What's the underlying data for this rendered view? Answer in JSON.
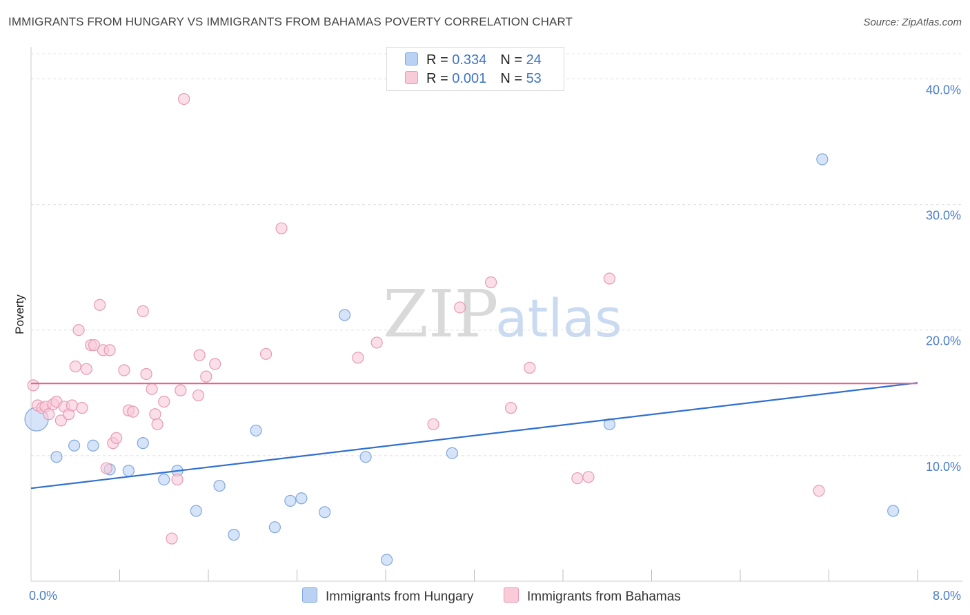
{
  "title": "IMMIGRANTS FROM HUNGARY VS IMMIGRANTS FROM BAHAMAS POVERTY CORRELATION CHART",
  "source": "Source: ZipAtlas.com",
  "watermark": {
    "zip": "ZIP",
    "atlas": "atlas"
  },
  "legend": {
    "rows": [
      {
        "r_label": "R = ",
        "r_value": "0.334",
        "n_label": "N = ",
        "n_value": "24",
        "color": "#b9d2f3",
        "border": "#7fa6dc"
      },
      {
        "r_label": "R = ",
        "r_value": "0.001",
        "n_label": "N = ",
        "n_value": "53",
        "color": "#f9cad8",
        "border": "#e79ab2"
      }
    ]
  },
  "bottom_legend": [
    {
      "label": "Immigrants from Hungary",
      "color": "#b9d2f3",
      "border": "#7fa6dc"
    },
    {
      "label": "Immigrants from Bahamas",
      "color": "#f9cad8",
      "border": "#e79ab2"
    }
  ],
  "chart_data": {
    "type": "scatter",
    "title": "IMMIGRANTS FROM HUNGARY VS IMMIGRANTS FROM BAHAMAS POVERTY CORRELATION CHART",
    "xlabel": "",
    "ylabel": "Poverty",
    "xlim": [
      0,
      8.0
    ],
    "ylim": [
      0,
      42.0
    ],
    "y_ticks": [
      10,
      20,
      30,
      40
    ],
    "y_tick_labels": [
      "10.0%",
      "20.0%",
      "30.0%",
      "40.0%"
    ],
    "x_tick_labels": [
      "0.0%",
      "8.0%"
    ],
    "x_tick_label_values": [
      0,
      8.0
    ],
    "x_minor_ticks": [
      0.8,
      1.6,
      2.4,
      3.2,
      4.0,
      4.8,
      5.6,
      6.4,
      7.2,
      8.0
    ],
    "series": [
      {
        "name": "Immigrants from Hungary",
        "color": "#b9d2f3",
        "stroke": "#7fa6dc",
        "line_color": "#2f6fd0",
        "trend": {
          "x": [
            0,
            8.0
          ],
          "y": [
            7.4,
            15.8
          ]
        },
        "points": [
          {
            "x": 0.05,
            "y": 12.9,
            "big": true
          },
          {
            "x": 0.23,
            "y": 9.9
          },
          {
            "x": 0.39,
            "y": 10.8
          },
          {
            "x": 0.56,
            "y": 10.8
          },
          {
            "x": 0.71,
            "y": 8.9
          },
          {
            "x": 0.88,
            "y": 8.8
          },
          {
            "x": 1.01,
            "y": 11.0
          },
          {
            "x": 1.2,
            "y": 8.1
          },
          {
            "x": 1.32,
            "y": 8.8
          },
          {
            "x": 1.49,
            "y": 5.6
          },
          {
            "x": 1.7,
            "y": 7.6
          },
          {
            "x": 1.83,
            "y": 3.7
          },
          {
            "x": 2.03,
            "y": 12.0
          },
          {
            "x": 2.2,
            "y": 4.3
          },
          {
            "x": 2.34,
            "y": 6.4
          },
          {
            "x": 2.44,
            "y": 6.6
          },
          {
            "x": 2.65,
            "y": 5.5
          },
          {
            "x": 2.83,
            "y": 21.2
          },
          {
            "x": 3.02,
            "y": 9.9
          },
          {
            "x": 3.21,
            "y": 1.7
          },
          {
            "x": 3.8,
            "y": 10.2
          },
          {
            "x": 5.22,
            "y": 12.5
          },
          {
            "x": 7.14,
            "y": 33.6
          },
          {
            "x": 7.78,
            "y": 5.6
          }
        ]
      },
      {
        "name": "Immigrants from Bahamas",
        "color": "#f9cad8",
        "stroke": "#e79ab2",
        "line_color": "#e2668f",
        "trend": {
          "x": [
            0,
            8.0
          ],
          "y": [
            15.75,
            15.75
          ]
        },
        "points": [
          {
            "x": 0.02,
            "y": 15.6
          },
          {
            "x": 0.06,
            "y": 14.0
          },
          {
            "x": 0.1,
            "y": 13.8
          },
          {
            "x": 0.13,
            "y": 13.9
          },
          {
            "x": 0.16,
            "y": 13.3
          },
          {
            "x": 0.2,
            "y": 14.1
          },
          {
            "x": 0.23,
            "y": 14.3
          },
          {
            "x": 0.27,
            "y": 12.8
          },
          {
            "x": 0.3,
            "y": 13.9
          },
          {
            "x": 0.34,
            "y": 13.3
          },
          {
            "x": 0.37,
            "y": 14.0
          },
          {
            "x": 0.4,
            "y": 17.1
          },
          {
            "x": 0.43,
            "y": 20.0
          },
          {
            "x": 0.46,
            "y": 13.8
          },
          {
            "x": 0.5,
            "y": 16.9
          },
          {
            "x": 0.54,
            "y": 18.8
          },
          {
            "x": 0.57,
            "y": 18.8
          },
          {
            "x": 0.62,
            "y": 22.0
          },
          {
            "x": 0.65,
            "y": 18.4
          },
          {
            "x": 0.68,
            "y": 9.0
          },
          {
            "x": 0.71,
            "y": 18.4
          },
          {
            "x": 0.74,
            "y": 11.0
          },
          {
            "x": 0.77,
            "y": 11.4
          },
          {
            "x": 0.84,
            "y": 16.8
          },
          {
            "x": 0.88,
            "y": 13.6
          },
          {
            "x": 0.92,
            "y": 13.5
          },
          {
            "x": 1.01,
            "y": 21.5
          },
          {
            "x": 1.04,
            "y": 16.5
          },
          {
            "x": 1.09,
            "y": 15.3
          },
          {
            "x": 1.12,
            "y": 13.3
          },
          {
            "x": 1.14,
            "y": 12.5
          },
          {
            "x": 1.2,
            "y": 14.3
          },
          {
            "x": 1.27,
            "y": 3.4
          },
          {
            "x": 1.32,
            "y": 8.1
          },
          {
            "x": 1.35,
            "y": 15.2
          },
          {
            "x": 1.52,
            "y": 18.0
          },
          {
            "x": 1.51,
            "y": 14.8
          },
          {
            "x": 1.58,
            "y": 16.3
          },
          {
            "x": 1.66,
            "y": 17.3
          },
          {
            "x": 1.38,
            "y": 38.4
          },
          {
            "x": 2.12,
            "y": 18.1
          },
          {
            "x": 2.26,
            "y": 28.1
          },
          {
            "x": 2.95,
            "y": 17.8
          },
          {
            "x": 3.12,
            "y": 19.0
          },
          {
            "x": 3.63,
            "y": 12.5
          },
          {
            "x": 3.87,
            "y": 21.8
          },
          {
            "x": 4.15,
            "y": 23.8
          },
          {
            "x": 4.33,
            "y": 13.8
          },
          {
            "x": 4.5,
            "y": 17.0
          },
          {
            "x": 4.93,
            "y": 8.2
          },
          {
            "x": 5.03,
            "y": 8.3
          },
          {
            "x": 5.22,
            "y": 24.1
          },
          {
            "x": 7.11,
            "y": 7.2
          }
        ]
      }
    ]
  }
}
